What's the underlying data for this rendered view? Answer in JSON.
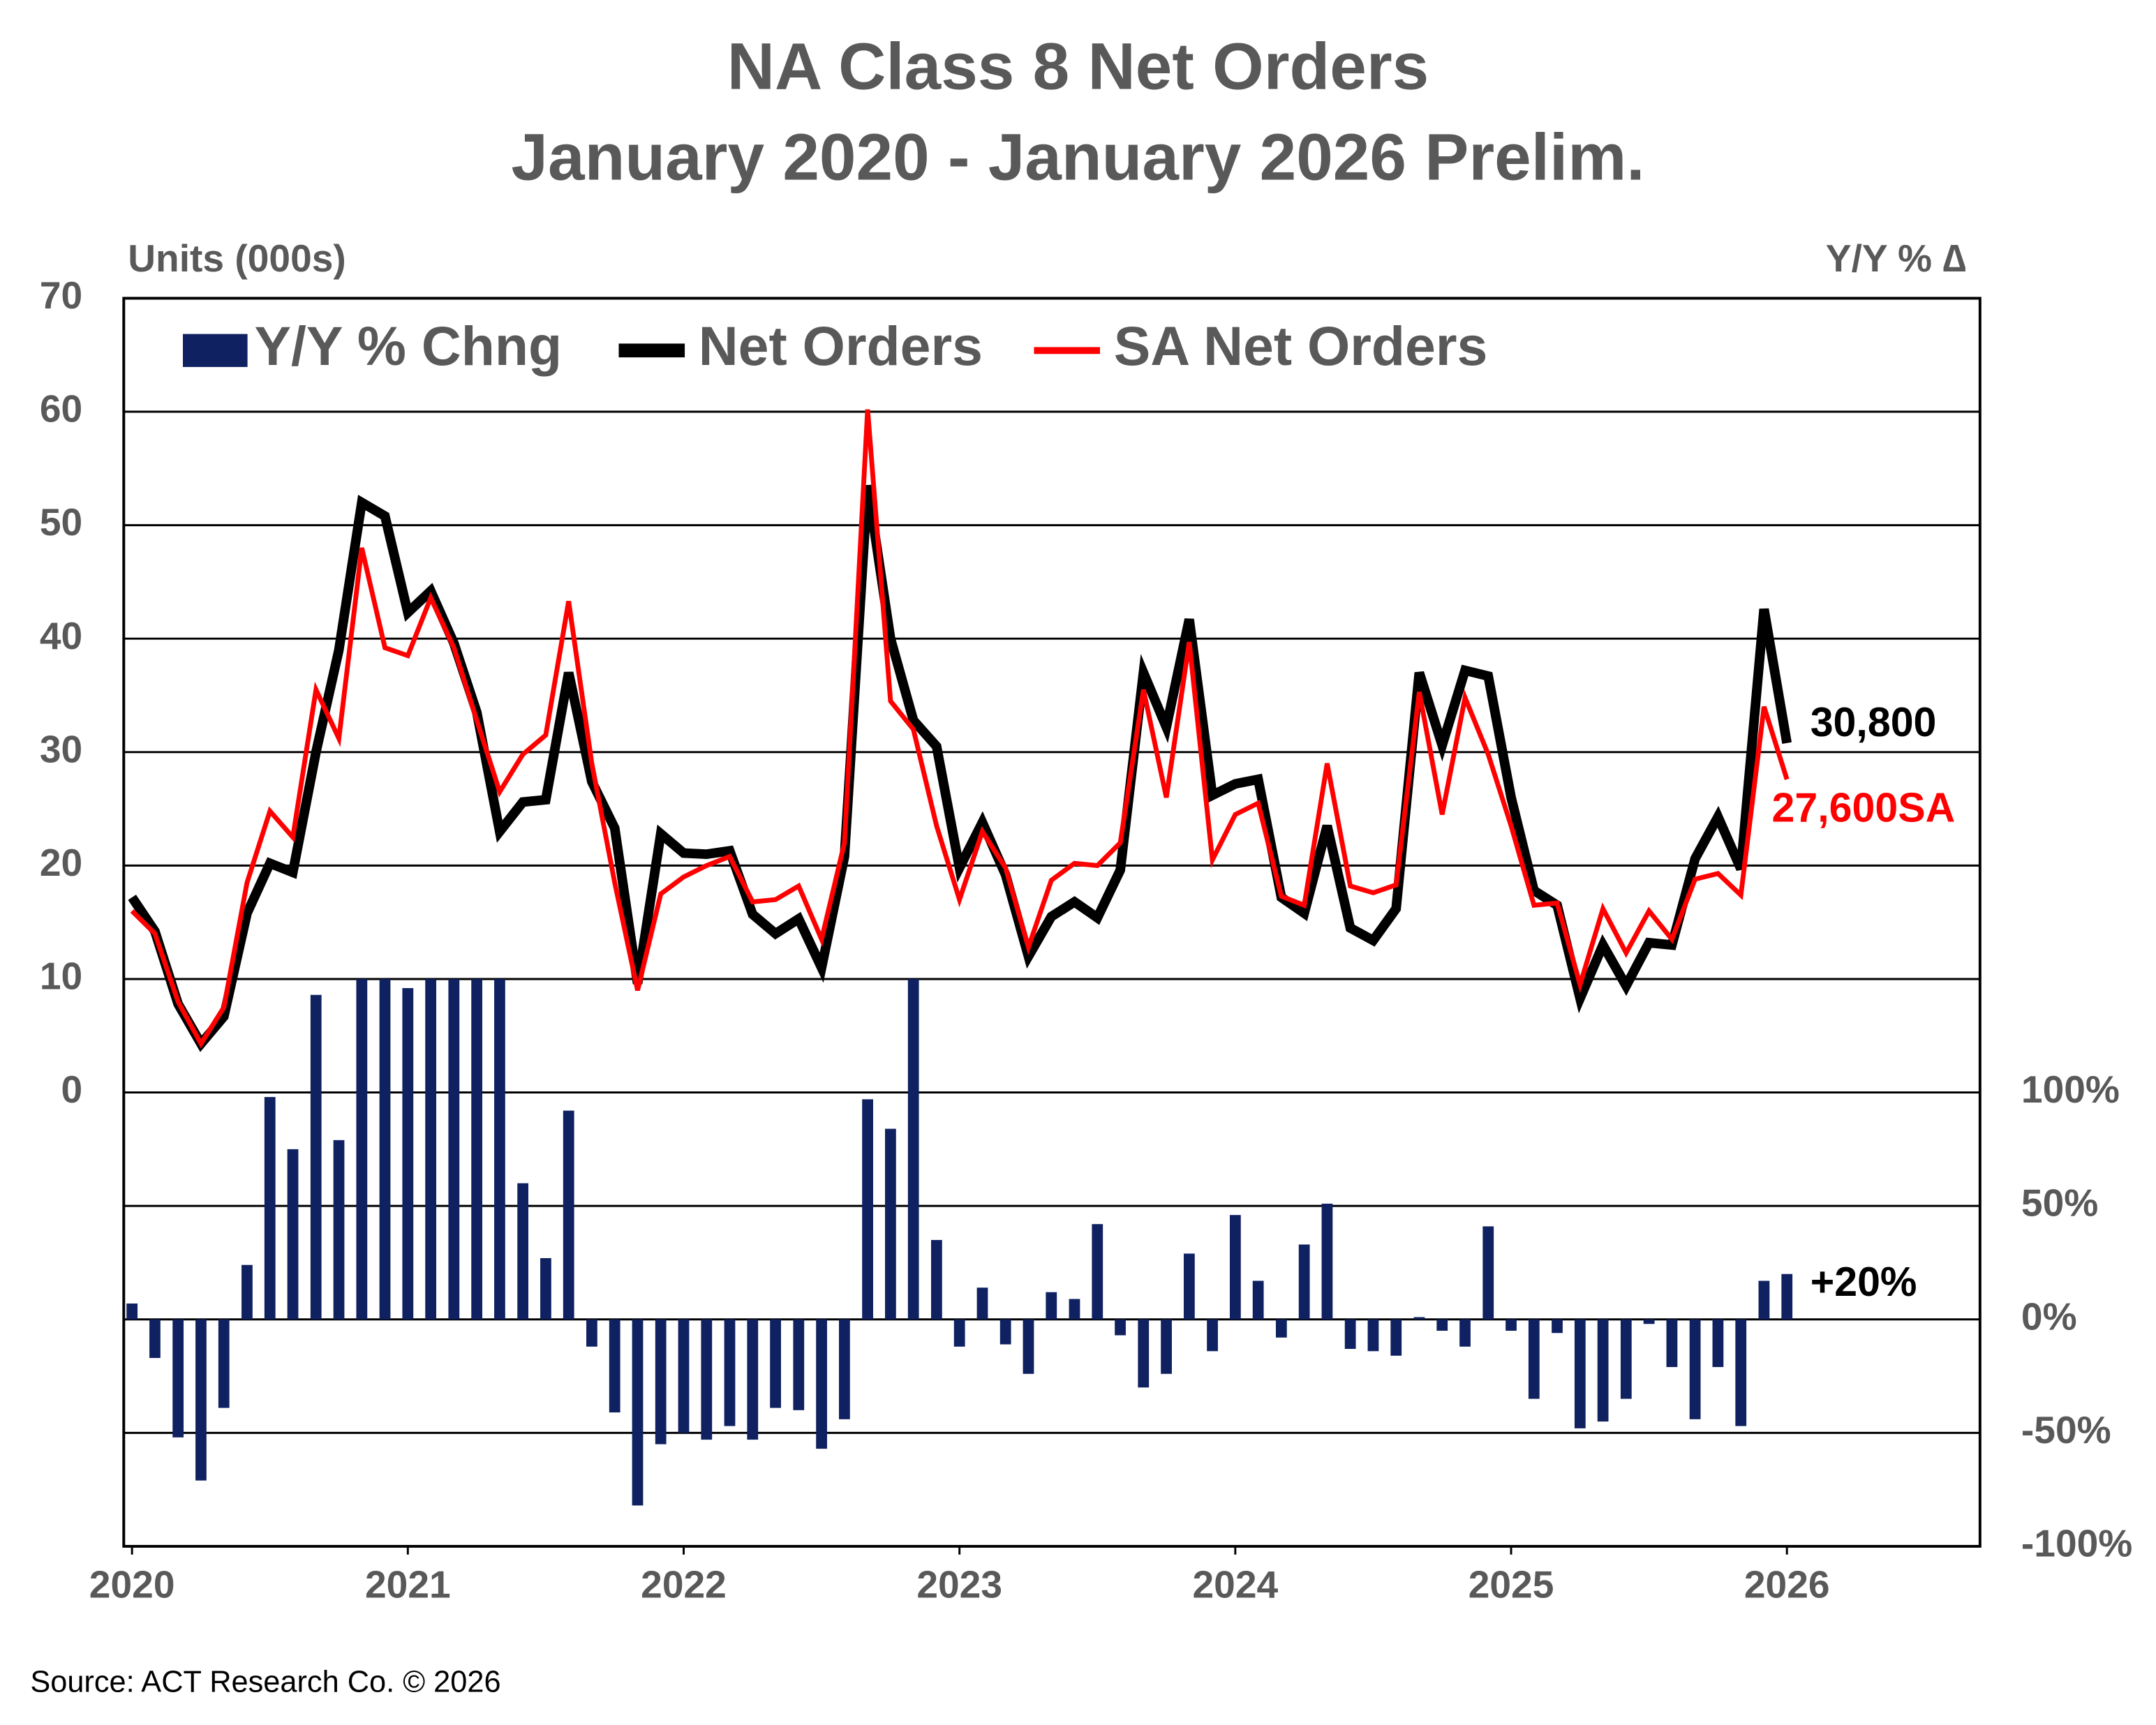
{
  "chart_data": {
    "type": "combo",
    "title": "NA Class 8 Net Orders",
    "subtitle": "January 2020 - January 2026 Prelim.",
    "y_label": "Units (000s)",
    "y2_label": "Y/Y % ∆",
    "source": "Source: ACT Research Co. © 2026",
    "x": [
      2020,
      2020.083,
      2020.167,
      2020.25,
      2020.333,
      2020.417,
      2020.5,
      2020.583,
      2020.667,
      2020.75,
      2020.833,
      2020.917,
      2021,
      2021.083,
      2021.167,
      2021.25,
      2021.333,
      2021.417,
      2021.5,
      2021.583,
      2021.667,
      2021.75,
      2021.833,
      2021.917,
      2022,
      2022.083,
      2022.167,
      2022.25,
      2022.333,
      2022.417,
      2022.5,
      2022.583,
      2022.667,
      2022.75,
      2022.833,
      2022.917,
      2023,
      2023.083,
      2023.167,
      2023.25,
      2023.333,
      2023.417,
      2023.5,
      2023.583,
      2023.667,
      2023.75,
      2023.833,
      2023.917,
      2024,
      2024.083,
      2024.167,
      2024.25,
      2024.333,
      2024.417,
      2024.5,
      2024.583,
      2024.667,
      2024.75,
      2024.833,
      2024.917,
      2025,
      2025.083,
      2025.167,
      2025.25,
      2025.333,
      2025.417,
      2025.5,
      2025.583,
      2025.667,
      2025.75,
      2025.833,
      2025.917,
      2026
    ],
    "xlim": [
      2019.97,
      2026.7
    ],
    "xticks": [
      2020,
      2021,
      2022,
      2023,
      2024,
      2025,
      2026
    ],
    "ylim": [
      -40,
      70
    ],
    "yticks": [
      0,
      10,
      20,
      30,
      40,
      50,
      60,
      70
    ],
    "y2lim": [
      -100,
      450
    ],
    "y2ticks": [
      {
        "value": -100,
        "label": "-100%"
      },
      {
        "value": -50,
        "label": "-50%"
      },
      {
        "value": 0,
        "label": "0%"
      },
      {
        "value": 50,
        "label": "50%"
      },
      {
        "value": 100,
        "label": "100%"
      }
    ],
    "grid": true,
    "legend": "top-left",
    "series": [
      {
        "name": "Y/Y % Chng",
        "type": "bar",
        "axis": "y2",
        "color": "#0f2160",
        "end_label": "+20%",
        "values": [
          7,
          -17,
          -52,
          -71,
          -39,
          24,
          98,
          75,
          143,
          79,
          150,
          150,
          146,
          150,
          150,
          150,
          150,
          60,
          27,
          92,
          -12,
          -41,
          -82,
          -55,
          -50,
          -53,
          -47,
          -53,
          -39,
          -40,
          -57,
          -44,
          97,
          84,
          150,
          35,
          -12,
          14,
          -11,
          -24,
          12,
          9,
          42,
          -7,
          -30,
          -24,
          29,
          -14,
          46,
          17,
          -8,
          33,
          51,
          -13,
          -14,
          -16,
          1,
          -5,
          -12,
          41,
          -5,
          -35,
          -6,
          -48,
          -45,
          -35,
          -2,
          -21,
          -44,
          -21,
          -47,
          17,
          20
        ]
      },
      {
        "name": "Net Orders",
        "type": "line",
        "color": "#000000",
        "end_label": "30,800",
        "values": [
          17.2,
          14.2,
          7.8,
          4.3,
          6.7,
          15.8,
          20.2,
          19.4,
          30,
          39,
          52,
          50.8,
          42.3,
          44.2,
          39.6,
          33.5,
          23,
          25.6,
          25.8,
          37,
          27.4,
          23.3,
          9.6,
          22.8,
          21.1,
          21,
          21.3,
          15.7,
          14,
          15.3,
          11,
          20.8,
          53.5,
          40,
          32.8,
          30.5,
          19.8,
          23.8,
          19.2,
          12,
          15.5,
          16.8,
          15.4,
          19.6,
          37,
          32.2,
          41.7,
          26.2,
          27.2,
          27.6,
          17.2,
          15.8,
          23.5,
          14.5,
          13.4,
          16.2,
          37,
          30.6,
          37.2,
          36.7,
          26,
          17.8,
          16.5,
          8.3,
          13,
          9.4,
          13.2,
          13,
          20.6,
          24.3,
          19.7,
          42.6,
          30.8
        ]
      },
      {
        "name": "SA Net Orders",
        "type": "line",
        "color": "#ff0000",
        "end_label": "27,600SA",
        "values": [
          16,
          14,
          8,
          4.3,
          7.5,
          18.5,
          24.8,
          22.5,
          35.5,
          31.2,
          48,
          39.2,
          38.5,
          43.6,
          39.2,
          32.8,
          26.5,
          29.8,
          31.5,
          43.3,
          29,
          18.5,
          9,
          17.5,
          19,
          20,
          20.8,
          16.8,
          17,
          18.2,
          13.5,
          22,
          60.2,
          34.5,
          32,
          23.5,
          17,
          23,
          19.8,
          12.8,
          18.7,
          20.2,
          20,
          22,
          35.5,
          26,
          39.7,
          20.5,
          24.5,
          25.5,
          17.3,
          16.5,
          29,
          18.2,
          17.6,
          18.3,
          35.3,
          24.5,
          34.8,
          29.8,
          23.5,
          16.5,
          16.7,
          9.5,
          16.2,
          12.3,
          16,
          13.5,
          18.8,
          19.3,
          17.4,
          34,
          27.6
        ]
      }
    ]
  }
}
